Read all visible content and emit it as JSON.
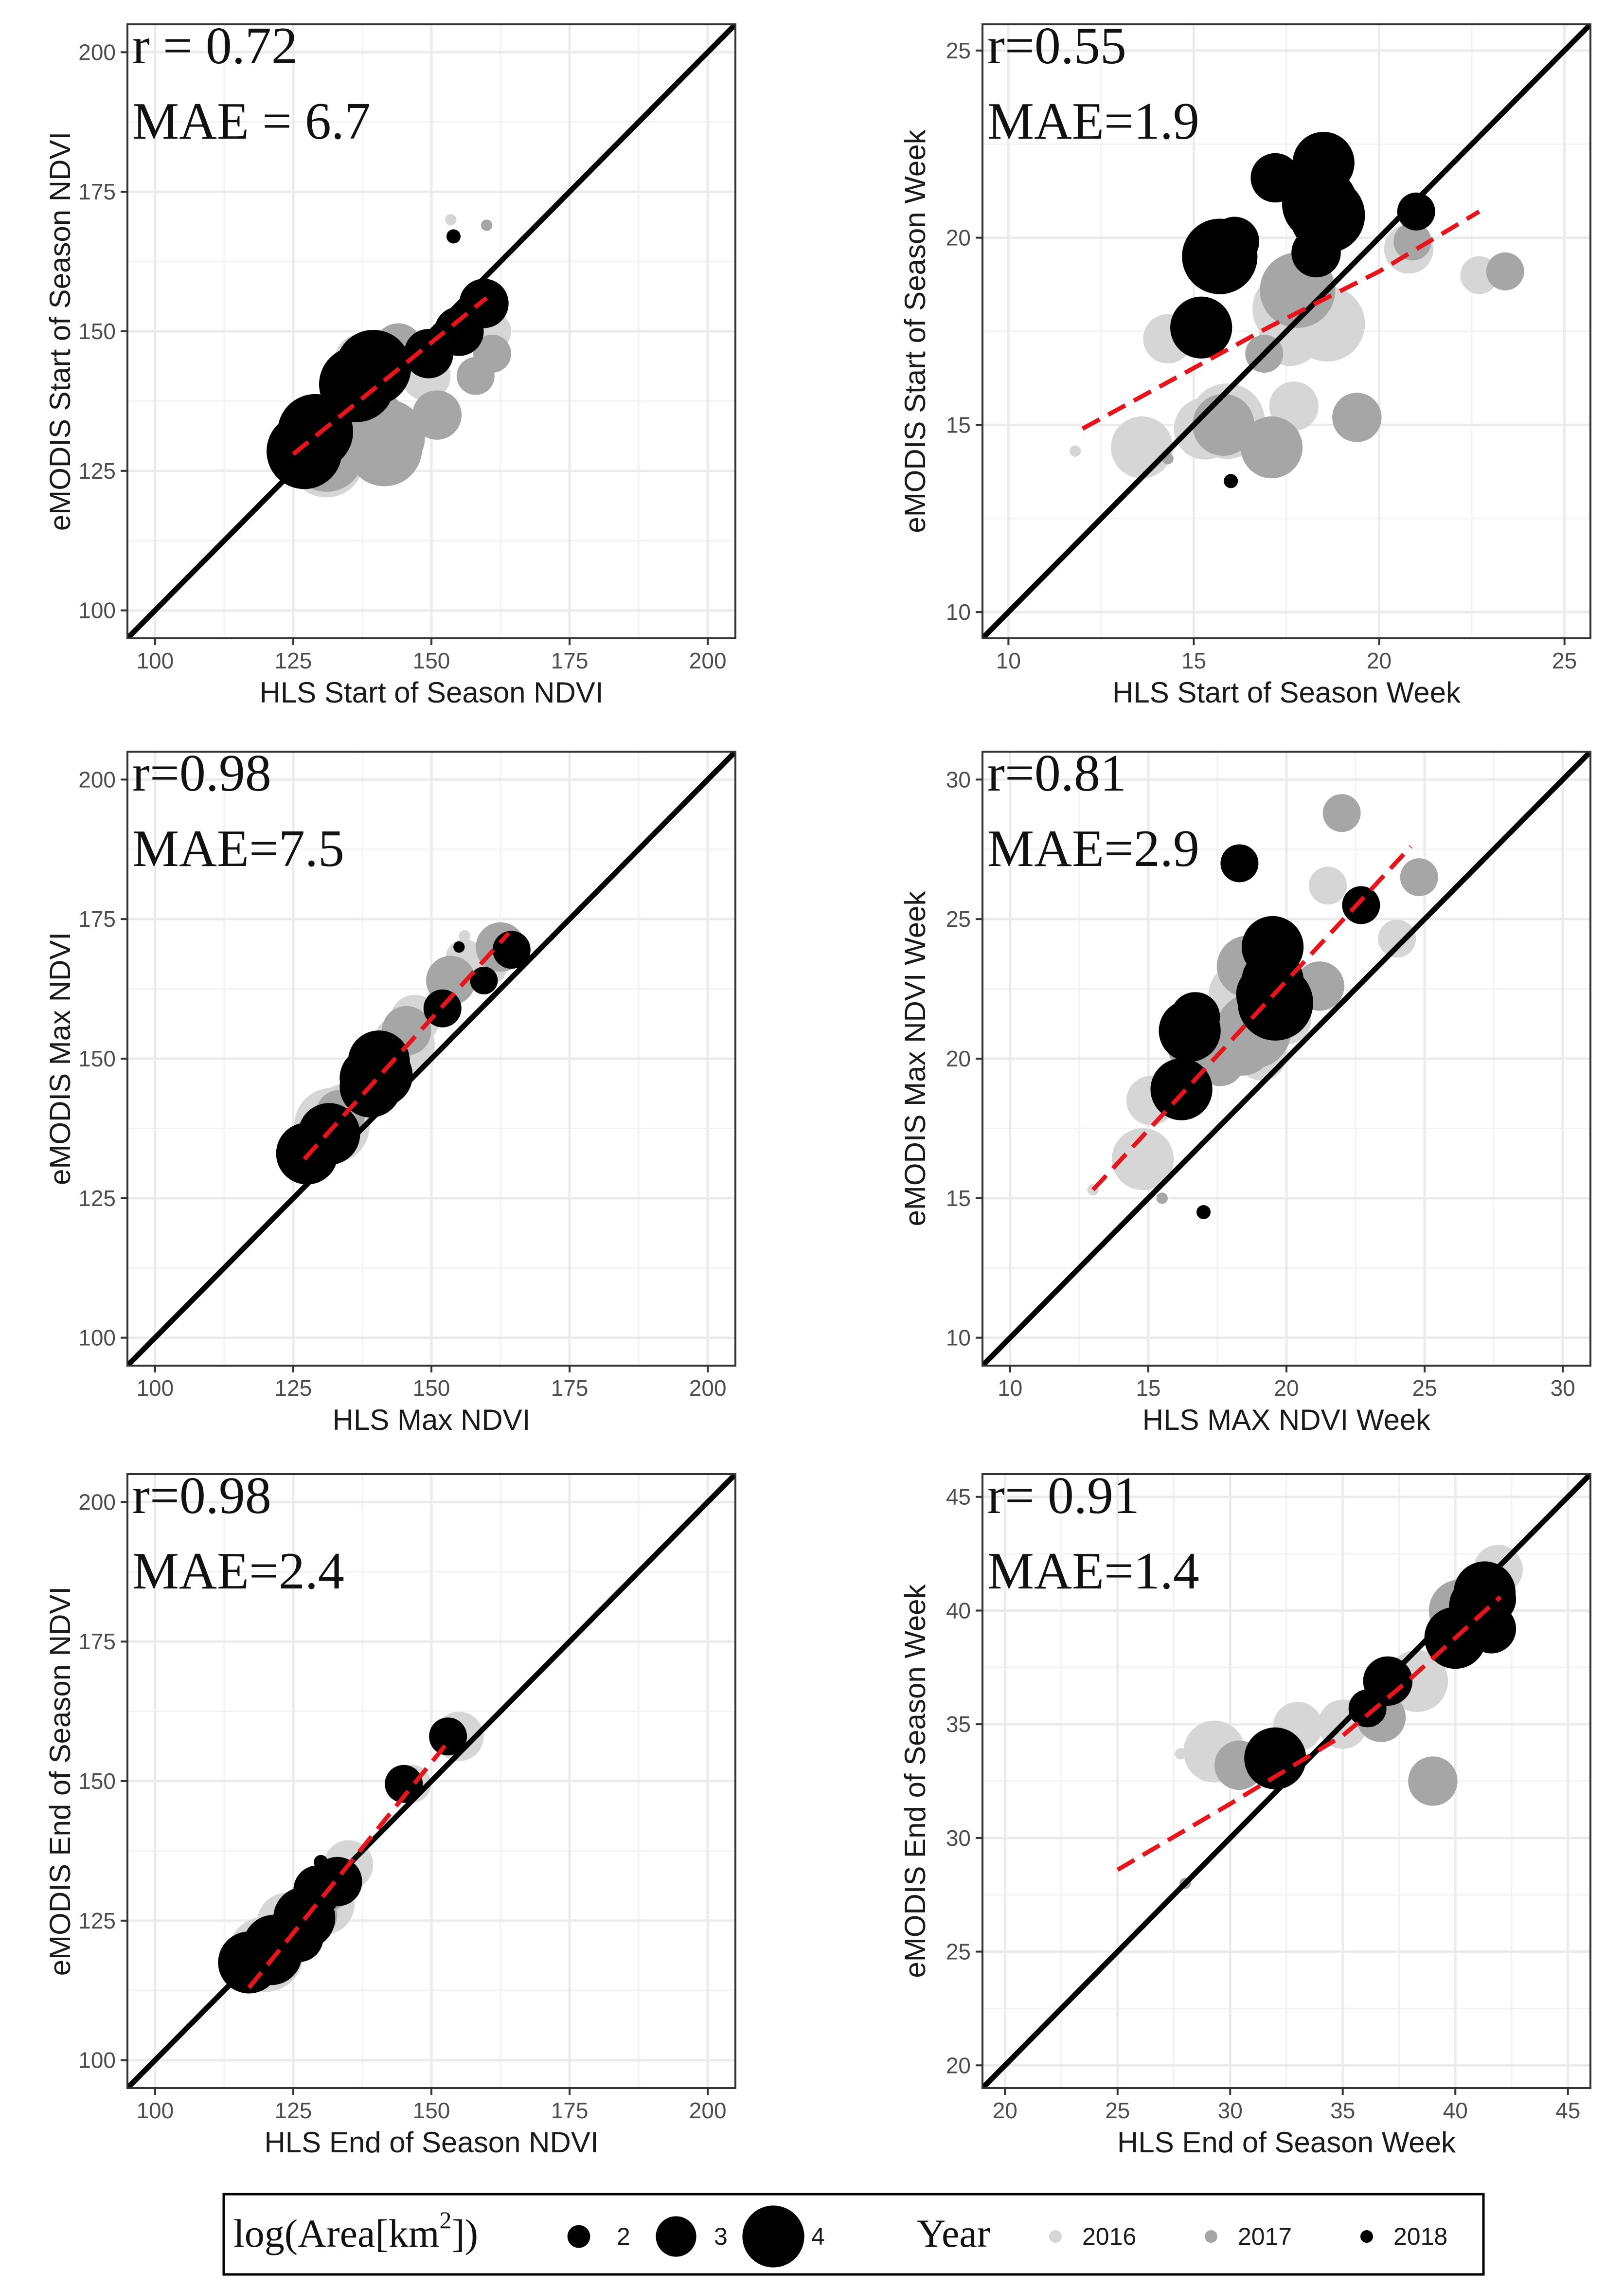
{
  "colors": {
    "year_2016": "#d6d6d6",
    "year_2017": "#a6a6a6",
    "year_2018": "#000000",
    "trend": "#e8141b",
    "identity": "#000000",
    "grid": "#ebebeb"
  },
  "legend": {
    "size_title": "log(Area[km",
    "size_title_sup": "2",
    "size_title_end": "])",
    "sizes": [
      {
        "label": "2",
        "value": 2
      },
      {
        "label": "3",
        "value": 3
      },
      {
        "label": "4",
        "value": 4
      }
    ],
    "year_title": "Year",
    "years": [
      {
        "label": "2016",
        "color": "#d6d6d6"
      },
      {
        "label": "2017",
        "color": "#a6a6a6"
      },
      {
        "label": "2018",
        "color": "#000000"
      }
    ]
  },
  "chart_data": [
    {
      "type": "scatter",
      "xlabel": "HLS Start of Season NDVI",
      "ylabel": "eMODIS Start of Season NDVI",
      "stat_r": "r = 0.72",
      "stat_mae": "MAE = 6.7",
      "xlim": [
        95,
        205
      ],
      "ylim": [
        95,
        205
      ],
      "xticks": [
        100,
        125,
        150,
        175,
        200
      ],
      "yticks": [
        100,
        125,
        150,
        175,
        200
      ],
      "trend": [
        [
          125,
          128
        ],
        [
          160,
          156
        ]
      ],
      "points": [
        {
          "x": 127,
          "y": 128.5,
          "year": 2018,
          "size": 4
        },
        {
          "x": 129,
          "y": 132,
          "year": 2018,
          "size": 4
        },
        {
          "x": 131,
          "y": 127,
          "year": 2016,
          "size": 4
        },
        {
          "x": 131,
          "y": 128,
          "year": 2017,
          "size": 4
        },
        {
          "x": 133,
          "y": 132,
          "year": 2016,
          "size": 3
        },
        {
          "x": 136.5,
          "y": 140.5,
          "year": 2018,
          "size": 4
        },
        {
          "x": 139.5,
          "y": 143.5,
          "year": 2018,
          "size": 4
        },
        {
          "x": 137,
          "y": 145,
          "year": 2016,
          "size": 3
        },
        {
          "x": 138.5,
          "y": 133.5,
          "year": 2017,
          "size": 4
        },
        {
          "x": 142,
          "y": 131,
          "year": 2017,
          "size": 4
        },
        {
          "x": 141.5,
          "y": 129,
          "year": 2017,
          "size": 4
        },
        {
          "x": 144,
          "y": 147,
          "year": 2017,
          "size": 3
        },
        {
          "x": 146,
          "y": 144,
          "year": 2016,
          "size": 3
        },
        {
          "x": 149.5,
          "y": 146,
          "year": 2018,
          "size": 3
        },
        {
          "x": 149,
          "y": 142,
          "year": 2016,
          "size": 3
        },
        {
          "x": 151,
          "y": 135,
          "year": 2017,
          "size": 3
        },
        {
          "x": 155,
          "y": 150,
          "year": 2018,
          "size": 3
        },
        {
          "x": 158,
          "y": 142,
          "year": 2017,
          "size": 2.5
        },
        {
          "x": 159.5,
          "y": 155,
          "year": 2018,
          "size": 3
        },
        {
          "x": 161,
          "y": 150,
          "year": 2016,
          "size": 2.5
        },
        {
          "x": 161,
          "y": 146,
          "year": 2017,
          "size": 2.5
        },
        {
          "x": 154,
          "y": 167,
          "year": 2018,
          "size": 1.2
        },
        {
          "x": 153.5,
          "y": 170,
          "year": 2016,
          "size": 1.0
        },
        {
          "x": 160,
          "y": 169,
          "year": 2017,
          "size": 1.0
        }
      ]
    },
    {
      "type": "scatter",
      "xlabel": "HLS Start of Season Week",
      "ylabel": "eMODIS Start of Season Week",
      "stat_r": "r=0.55",
      "stat_mae": "MAE=1.9",
      "xlim": [
        9.3,
        25.7
      ],
      "ylim": [
        9.3,
        25.7
      ],
      "xticks": [
        10,
        15,
        20,
        25
      ],
      "yticks": [
        10,
        15,
        20,
        25
      ],
      "trend": [
        [
          12,
          14.9
        ],
        [
          17,
          17.6
        ],
        [
          20,
          19.1
        ],
        [
          22.7,
          20.7
        ]
      ],
      "points": [
        {
          "x": 18.5,
          "y": 22,
          "year": 2018,
          "size": 3.5
        },
        {
          "x": 17.2,
          "y": 21.6,
          "year": 2018,
          "size": 3
        },
        {
          "x": 18.4,
          "y": 20.9,
          "year": 2018,
          "size": 4
        },
        {
          "x": 18.6,
          "y": 20.6,
          "year": 2018,
          "size": 4
        },
        {
          "x": 16.1,
          "y": 19.9,
          "year": 2018,
          "size": 3
        },
        {
          "x": 15.7,
          "y": 19.5,
          "year": 2018,
          "size": 4
        },
        {
          "x": 18.3,
          "y": 19.6,
          "year": 2018,
          "size": 3
        },
        {
          "x": 21,
          "y": 20.7,
          "year": 2018,
          "size": 2.5
        },
        {
          "x": 15.2,
          "y": 17.6,
          "year": 2018,
          "size": 3.5
        },
        {
          "x": 17.8,
          "y": 18.6,
          "year": 2017,
          "size": 4
        },
        {
          "x": 17.6,
          "y": 18.1,
          "year": 2016,
          "size": 4
        },
        {
          "x": 17.5,
          "y": 18.6,
          "year": 2016,
          "size": 3
        },
        {
          "x": 18.6,
          "y": 17.7,
          "year": 2016,
          "size": 4
        },
        {
          "x": 17.6,
          "y": 17.4,
          "year": 2016,
          "size": 3.5
        },
        {
          "x": 16.9,
          "y": 16.9,
          "year": 2017,
          "size": 2.5
        },
        {
          "x": 14.3,
          "y": 17.3,
          "year": 2016,
          "size": 3
        },
        {
          "x": 20.8,
          "y": 19.7,
          "year": 2016,
          "size": 3
        },
        {
          "x": 20.9,
          "y": 19.9,
          "year": 2017,
          "size": 2.5
        },
        {
          "x": 22.7,
          "y": 19,
          "year": 2016,
          "size": 2.5
        },
        {
          "x": 23.4,
          "y": 19.1,
          "year": 2017,
          "size": 2.5
        },
        {
          "x": 17.7,
          "y": 15.5,
          "year": 2016,
          "size": 3
        },
        {
          "x": 19.4,
          "y": 15.2,
          "year": 2017,
          "size": 3
        },
        {
          "x": 15.9,
          "y": 15.1,
          "year": 2016,
          "size": 4
        },
        {
          "x": 15.3,
          "y": 14.9,
          "year": 2016,
          "size": 3.5
        },
        {
          "x": 15.8,
          "y": 15,
          "year": 2017,
          "size": 3.5
        },
        {
          "x": 17.1,
          "y": 14.4,
          "year": 2017,
          "size": 3.5
        },
        {
          "x": 13.6,
          "y": 14.4,
          "year": 2016,
          "size": 3.5
        },
        {
          "x": 16,
          "y": 13.5,
          "year": 2018,
          "size": 1.2
        },
        {
          "x": 11.8,
          "y": 14.3,
          "year": 2016,
          "size": 1.0
        },
        {
          "x": 14.3,
          "y": 14.1,
          "year": 2017,
          "size": 1.0
        }
      ]
    },
    {
      "type": "scatter",
      "xlabel": "HLS Max NDVI",
      "ylabel": "eMODIS Max NDVI",
      "stat_r": "r=0.98",
      "stat_mae": "MAE=7.5",
      "xlim": [
        95,
        205
      ],
      "ylim": [
        95,
        205
      ],
      "xticks": [
        100,
        125,
        150,
        175,
        200
      ],
      "yticks": [
        100,
        125,
        150,
        175,
        200
      ],
      "trend": [
        [
          127,
          132
        ],
        [
          164,
          172.5
        ]
      ],
      "points": [
        {
          "x": 127.5,
          "y": 133,
          "year": 2018,
          "size": 3.5
        },
        {
          "x": 131.5,
          "y": 136.5,
          "year": 2018,
          "size": 3.5
        },
        {
          "x": 132,
          "y": 138,
          "year": 2016,
          "size": 4
        },
        {
          "x": 133.5,
          "y": 140,
          "year": 2017,
          "size": 3
        },
        {
          "x": 134,
          "y": 141,
          "year": 2016,
          "size": 3
        },
        {
          "x": 139,
          "y": 146.5,
          "year": 2018,
          "size": 3.5
        },
        {
          "x": 140.5,
          "y": 149.5,
          "year": 2018,
          "size": 3.5
        },
        {
          "x": 141,
          "y": 147,
          "year": 2018,
          "size": 3.5
        },
        {
          "x": 139,
          "y": 145,
          "year": 2018,
          "size": 3.5
        },
        {
          "x": 145,
          "y": 152.5,
          "year": 2016,
          "size": 3.5
        },
        {
          "x": 145.5,
          "y": 155,
          "year": 2017,
          "size": 3
        },
        {
          "x": 147,
          "y": 157,
          "year": 2016,
          "size": 3
        },
        {
          "x": 152,
          "y": 159,
          "year": 2018,
          "size": 2.5
        },
        {
          "x": 153.5,
          "y": 164,
          "year": 2017,
          "size": 3
        },
        {
          "x": 156,
          "y": 168,
          "year": 2016,
          "size": 2.5
        },
        {
          "x": 159.5,
          "y": 164,
          "year": 2018,
          "size": 2
        },
        {
          "x": 161,
          "y": 166,
          "year": 2016,
          "size": 2
        },
        {
          "x": 162.5,
          "y": 170,
          "year": 2017,
          "size": 3
        },
        {
          "x": 164.5,
          "y": 169.5,
          "year": 2018,
          "size": 2.5
        },
        {
          "x": 155,
          "y": 170,
          "year": 2018,
          "size": 1.0
        },
        {
          "x": 156,
          "y": 172,
          "year": 2016,
          "size": 1.0
        }
      ]
    },
    {
      "type": "scatter",
      "xlabel": "HLS MAX NDVI Week",
      "ylabel": "eMODIS Max NDVI Week",
      "stat_r": "r=0.81",
      "stat_mae": "MAE=2.9",
      "xlim": [
        9.0,
        31.0
      ],
      "ylim": [
        9.0,
        31.0
      ],
      "xticks": [
        10,
        15,
        20,
        25,
        30
      ],
      "yticks": [
        10,
        15,
        20,
        25,
        30
      ],
      "trend": [
        [
          13,
          15.3
        ],
        [
          24.5,
          27.6
        ]
      ],
      "points": [
        {
          "x": 18.3,
          "y": 27,
          "year": 2018,
          "size": 2.5
        },
        {
          "x": 22,
          "y": 28.8,
          "year": 2017,
          "size": 2.5
        },
        {
          "x": 21.5,
          "y": 26.2,
          "year": 2016,
          "size": 2.5
        },
        {
          "x": 24.8,
          "y": 26.5,
          "year": 2017,
          "size": 2.5
        },
        {
          "x": 22.7,
          "y": 25.5,
          "year": 2018,
          "size": 2.5
        },
        {
          "x": 24,
          "y": 24.3,
          "year": 2016,
          "size": 2.5
        },
        {
          "x": 19.5,
          "y": 24,
          "year": 2018,
          "size": 3.5
        },
        {
          "x": 19,
          "y": 23.3,
          "year": 2017,
          "size": 3.5
        },
        {
          "x": 18.6,
          "y": 23.3,
          "year": 2017,
          "size": 3.5
        },
        {
          "x": 19.5,
          "y": 22.8,
          "year": 2018,
          "size": 3.5
        },
        {
          "x": 19.3,
          "y": 22.3,
          "year": 2018,
          "size": 3.5
        },
        {
          "x": 19.6,
          "y": 22,
          "year": 2018,
          "size": 4
        },
        {
          "x": 21.2,
          "y": 22.6,
          "year": 2017,
          "size": 3
        },
        {
          "x": 18.3,
          "y": 22.3,
          "year": 2016,
          "size": 3.5
        },
        {
          "x": 20,
          "y": 21.4,
          "year": 2016,
          "size": 3
        },
        {
          "x": 16.7,
          "y": 21.5,
          "year": 2018,
          "size": 3
        },
        {
          "x": 16.5,
          "y": 21,
          "year": 2018,
          "size": 3.5
        },
        {
          "x": 16.8,
          "y": 20.5,
          "year": 2017,
          "size": 3.5
        },
        {
          "x": 18.8,
          "y": 21,
          "year": 2017,
          "size": 4
        },
        {
          "x": 18.4,
          "y": 20.5,
          "year": 2017,
          "size": 3.5
        },
        {
          "x": 19.1,
          "y": 20.1,
          "year": 2016,
          "size": 3
        },
        {
          "x": 17.6,
          "y": 19.9,
          "year": 2017,
          "size": 3
        },
        {
          "x": 16.2,
          "y": 18.9,
          "year": 2018,
          "size": 3.5
        },
        {
          "x": 15.1,
          "y": 18.5,
          "year": 2016,
          "size": 3
        },
        {
          "x": 14.8,
          "y": 16.4,
          "year": 2016,
          "size": 3.5
        },
        {
          "x": 17,
          "y": 14.5,
          "year": 2018,
          "size": 1.2
        },
        {
          "x": 15.5,
          "y": 15,
          "year": 2017,
          "size": 1.0
        },
        {
          "x": 13,
          "y": 15.3,
          "year": 2016,
          "size": 1.0
        }
      ]
    },
    {
      "type": "scatter",
      "xlabel": "HLS End of Season NDVI",
      "ylabel": "eMODIS End of Season NDVI",
      "stat_r": "r=0.98",
      "stat_mae": "MAE=2.4",
      "xlim": [
        95,
        205
      ],
      "ylim": [
        95,
        205
      ],
      "xticks": [
        100,
        125,
        150,
        175,
        200
      ],
      "yticks": [
        100,
        125,
        150,
        175,
        200
      ],
      "trend": [
        [
          117,
          113
        ],
        [
          153,
          157
        ]
      ],
      "points": [
        {
          "x": 117,
          "y": 117.5,
          "year": 2018,
          "size": 3.5
        },
        {
          "x": 120,
          "y": 119,
          "year": 2016,
          "size": 4
        },
        {
          "x": 121,
          "y": 119,
          "year": 2018,
          "size": 3.5
        },
        {
          "x": 121.5,
          "y": 120.5,
          "year": 2018,
          "size": 3.5
        },
        {
          "x": 123,
          "y": 122,
          "year": 2017,
          "size": 3
        },
        {
          "x": 124,
          "y": 124.5,
          "year": 2016,
          "size": 3.5
        },
        {
          "x": 126,
          "y": 122,
          "year": 2018,
          "size": 3
        },
        {
          "x": 127,
          "y": 125.5,
          "year": 2018,
          "size": 3.5
        },
        {
          "x": 128.5,
          "y": 126,
          "year": 2017,
          "size": 3
        },
        {
          "x": 130.5,
          "y": 128,
          "year": 2016,
          "size": 3.5
        },
        {
          "x": 129.5,
          "y": 130.5,
          "year": 2018,
          "size": 3
        },
        {
          "x": 131,
          "y": 131,
          "year": 2017,
          "size": 3
        },
        {
          "x": 133,
          "y": 132,
          "year": 2018,
          "size": 3
        },
        {
          "x": 135,
          "y": 135,
          "year": 2016,
          "size": 3
        },
        {
          "x": 130,
          "y": 135.5,
          "year": 2018,
          "size": 1.2
        },
        {
          "x": 145,
          "y": 149.5,
          "year": 2018,
          "size": 2.5
        },
        {
          "x": 146.5,
          "y": 149.5,
          "year": 2016,
          "size": 2.5
        },
        {
          "x": 153,
          "y": 158,
          "year": 2018,
          "size": 2.5
        },
        {
          "x": 155,
          "y": 158,
          "year": 2016,
          "size": 3
        }
      ]
    },
    {
      "type": "scatter",
      "xlabel": "HLS End of Season Week",
      "ylabel": "eMODIS End of Season Week",
      "stat_r": "r= 0.91",
      "stat_mae": "MAE=1.4",
      "xlim": [
        19.0,
        46.0
      ],
      "ylim": [
        19.0,
        46.0
      ],
      "xticks": [
        20,
        25,
        30,
        35,
        40,
        45
      ],
      "yticks": [
        20,
        25,
        30,
        35,
        40,
        45
      ],
      "trend": [
        [
          25,
          28.6
        ],
        [
          30,
          31.5
        ],
        [
          35,
          34.5
        ],
        [
          38,
          37
        ],
        [
          42,
          40.6
        ]
      ],
      "points": [
        {
          "x": 41.9,
          "y": 41.8,
          "year": 2016,
          "size": 3
        },
        {
          "x": 41.3,
          "y": 40.8,
          "year": 2018,
          "size": 3.5
        },
        {
          "x": 41.1,
          "y": 40.2,
          "year": 2018,
          "size": 3.5
        },
        {
          "x": 41.6,
          "y": 40.5,
          "year": 2018,
          "size": 3
        },
        {
          "x": 40.8,
          "y": 40.3,
          "year": 2016,
          "size": 3.5
        },
        {
          "x": 40.2,
          "y": 40,
          "year": 2017,
          "size": 3.5
        },
        {
          "x": 41.6,
          "y": 39.2,
          "year": 2018,
          "size": 3
        },
        {
          "x": 40,
          "y": 38.8,
          "year": 2018,
          "size": 3.5
        },
        {
          "x": 38.3,
          "y": 36.9,
          "year": 2016,
          "size": 3.5
        },
        {
          "x": 37,
          "y": 36.9,
          "year": 2018,
          "size": 3
        },
        {
          "x": 36.1,
          "y": 35.7,
          "year": 2018,
          "size": 2.5
        },
        {
          "x": 36.7,
          "y": 35.3,
          "year": 2017,
          "size": 3
        },
        {
          "x": 35,
          "y": 35,
          "year": 2016,
          "size": 3
        },
        {
          "x": 33,
          "y": 34.9,
          "year": 2016,
          "size": 3
        },
        {
          "x": 32,
          "y": 33.5,
          "year": 2018,
          "size": 3.5
        },
        {
          "x": 30.4,
          "y": 33.2,
          "year": 2017,
          "size": 3
        },
        {
          "x": 29.3,
          "y": 33.8,
          "year": 2016,
          "size": 3.5
        },
        {
          "x": 39,
          "y": 32.5,
          "year": 2017,
          "size": 3
        },
        {
          "x": 27.8,
          "y": 33.7,
          "year": 2016,
          "size": 1.0
        },
        {
          "x": 28,
          "y": 28,
          "year": 2017,
          "size": 1.0
        }
      ]
    }
  ]
}
